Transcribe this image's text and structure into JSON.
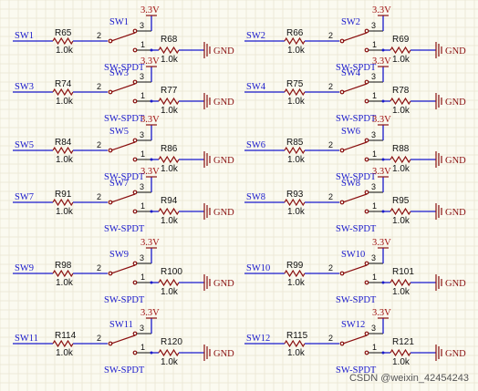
{
  "watermark": "CSDN @weixin_42454243",
  "symbols": {
    "power": "3.3V",
    "ground": "GND",
    "switch_type": "SW-SPDT"
  },
  "pins": {
    "common": "2",
    "throw_gnd": "1",
    "throw_pwr": "3"
  },
  "circuits": [
    {
      "net": "SW1",
      "r_in": "R65",
      "r_in_val": "1.0k",
      "sw": "SW1",
      "r_gnd": "R68",
      "r_gnd_val": "1.0k"
    },
    {
      "net": "SW2",
      "r_in": "R66",
      "r_in_val": "1.0k",
      "sw": "SW2",
      "r_gnd": "R69",
      "r_gnd_val": "1.0k"
    },
    {
      "net": "SW3",
      "r_in": "R74",
      "r_in_val": "1.0k",
      "sw": "SW3",
      "r_gnd": "R77",
      "r_gnd_val": "1.0k"
    },
    {
      "net": "SW4",
      "r_in": "R75",
      "r_in_val": "1.0k",
      "sw": "SW4",
      "r_gnd": "R78",
      "r_gnd_val": "1.0k"
    },
    {
      "net": "SW5",
      "r_in": "R84",
      "r_in_val": "1.0k",
      "sw": "SW5",
      "r_gnd": "R86",
      "r_gnd_val": "1.0k"
    },
    {
      "net": "SW6",
      "r_in": "R85",
      "r_in_val": "1.0k",
      "sw": "SW6",
      "r_gnd": "R88",
      "r_gnd_val": "1.0k"
    },
    {
      "net": "SW7",
      "r_in": "R91",
      "r_in_val": "1.0k",
      "sw": "SW7",
      "r_gnd": "R94",
      "r_gnd_val": "1.0k"
    },
    {
      "net": "SW8",
      "r_in": "R93",
      "r_in_val": "1.0k",
      "sw": "SW8",
      "r_gnd": "R95",
      "r_gnd_val": "1.0k"
    },
    {
      "net": "SW9",
      "r_in": "R98",
      "r_in_val": "1.0k",
      "sw": "SW9",
      "r_gnd": "R100",
      "r_gnd_val": "1.0k"
    },
    {
      "net": "SW10",
      "r_in": "R99",
      "r_in_val": "1.0k",
      "sw": "SW10",
      "r_gnd": "R101",
      "r_gnd_val": "1.0k"
    },
    {
      "net": "SW11",
      "r_in": "R114",
      "r_in_val": "1.0k",
      "sw": "SW11",
      "r_gnd": "R120",
      "r_gnd_val": "1.0k"
    },
    {
      "net": "SW12",
      "r_in": "R115",
      "r_in_val": "1.0k",
      "sw": "SW12",
      "r_gnd": "R121",
      "r_gnd_val": "1.0k"
    }
  ]
}
